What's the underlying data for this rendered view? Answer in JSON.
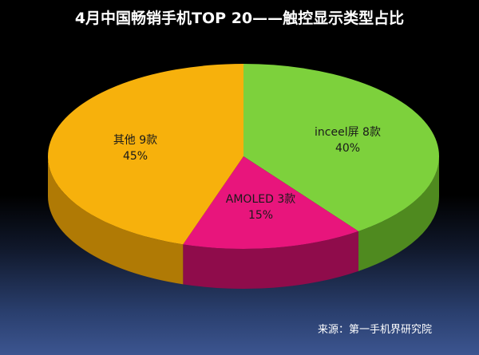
{
  "chart_data": {
    "type": "pie",
    "title": "4月中国畅销手机TOP 20——触控显示类型占比",
    "slices": [
      {
        "name": "inceel屏",
        "count_label": "8款",
        "value": 40,
        "percent_label": "40%",
        "color": "#7dd13c",
        "side_color": "#4f8a1f"
      },
      {
        "name": "AMOLED",
        "count_label": "3款",
        "value": 15,
        "percent_label": "15%",
        "color": "#e8157c",
        "side_color": "#8f0c4b"
      },
      {
        "name": "其他",
        "count_label": "9款",
        "value": 45,
        "percent_label": "45%",
        "color": "#f7b10c",
        "side_color": "#b07a05"
      }
    ],
    "legend": "none",
    "style": "3d-tilted"
  },
  "footer": {
    "source": "来源：第一手机界研究院"
  }
}
